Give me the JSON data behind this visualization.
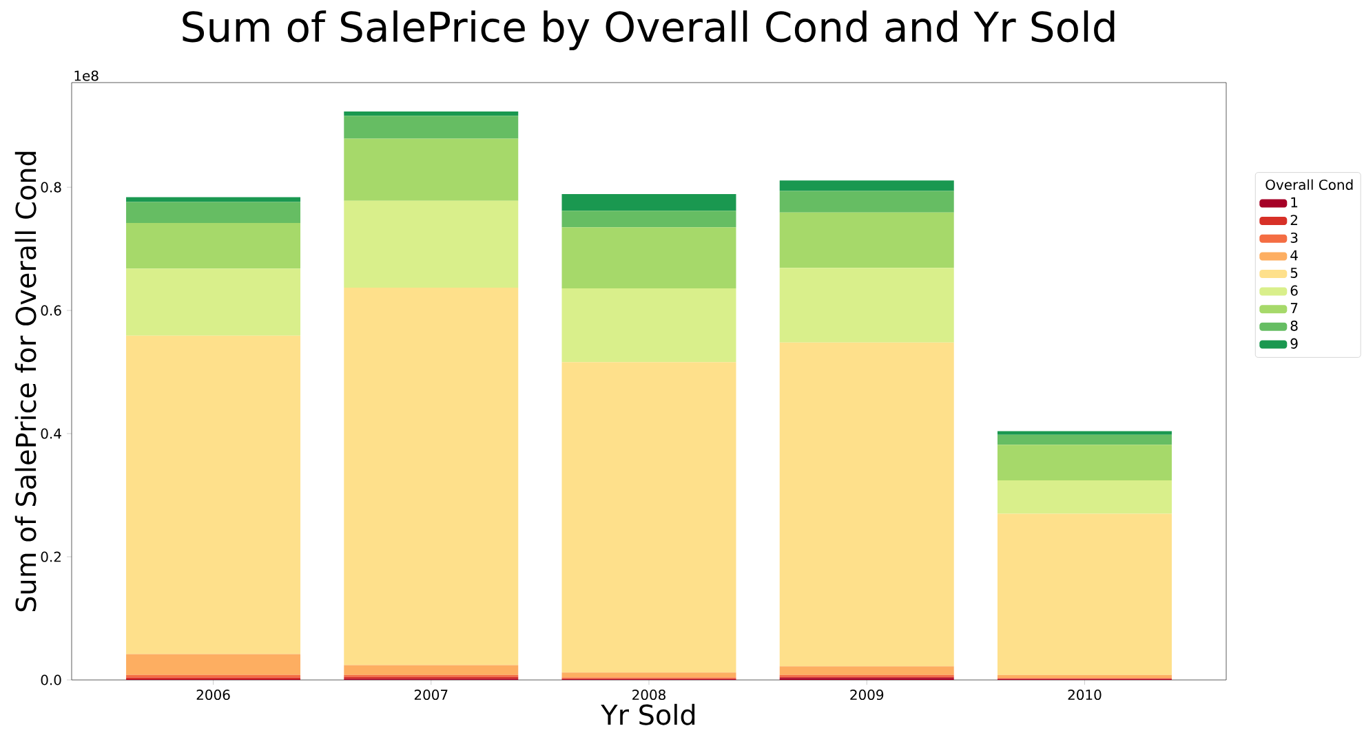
{
  "chart_data": {
    "type": "bar",
    "title": "Sum of SalePrice by Overall Cond and Yr Sold",
    "xlabel": "Yr Sold",
    "ylabel": "Sum of SalePrice for Overall Cond",
    "legend_title": "Overall Cond",
    "categories": [
      "2006",
      "2007",
      "2008",
      "2009",
      "2010"
    ],
    "stacked": true,
    "series": [
      {
        "name": "1",
        "color": "#a50026",
        "values": [
          0.001,
          0.002,
          0.001,
          0.003,
          0.001
        ]
      },
      {
        "name": "2",
        "color": "#d73027",
        "values": [
          0.003,
          0.003,
          0.001,
          0.002,
          0.001
        ]
      },
      {
        "name": "3",
        "color": "#f46d43",
        "values": [
          0.004,
          0.003,
          0.002,
          0.003,
          0.001
        ]
      },
      {
        "name": "4",
        "color": "#fdae61",
        "values": [
          0.034,
          0.016,
          0.008,
          0.014,
          0.005
        ]
      },
      {
        "name": "5",
        "color": "#fee08b",
        "values": [
          0.517,
          0.613,
          0.504,
          0.526,
          0.262
        ]
      },
      {
        "name": "6",
        "color": "#d9ef8b",
        "values": [
          0.109,
          0.141,
          0.12,
          0.121,
          0.054
        ]
      },
      {
        "name": "7",
        "color": "#a6d96a",
        "values": [
          0.074,
          0.101,
          0.099,
          0.09,
          0.058
        ]
      },
      {
        "name": "8",
        "color": "#66bd63",
        "values": [
          0.034,
          0.037,
          0.027,
          0.035,
          0.016
        ]
      },
      {
        "name": "9",
        "color": "#1a9850",
        "values": [
          0.008,
          0.007,
          0.027,
          0.017,
          0.006
        ]
      }
    ],
    "ylim": [
      0,
      0.97
    ],
    "yticks": [
      {
        "value": 0,
        "label": "0.0"
      },
      0.2,
      0.4,
      0.6,
      0.8
    ],
    "legend": "right",
    "annotations": [
      "1e8"
    ]
  }
}
